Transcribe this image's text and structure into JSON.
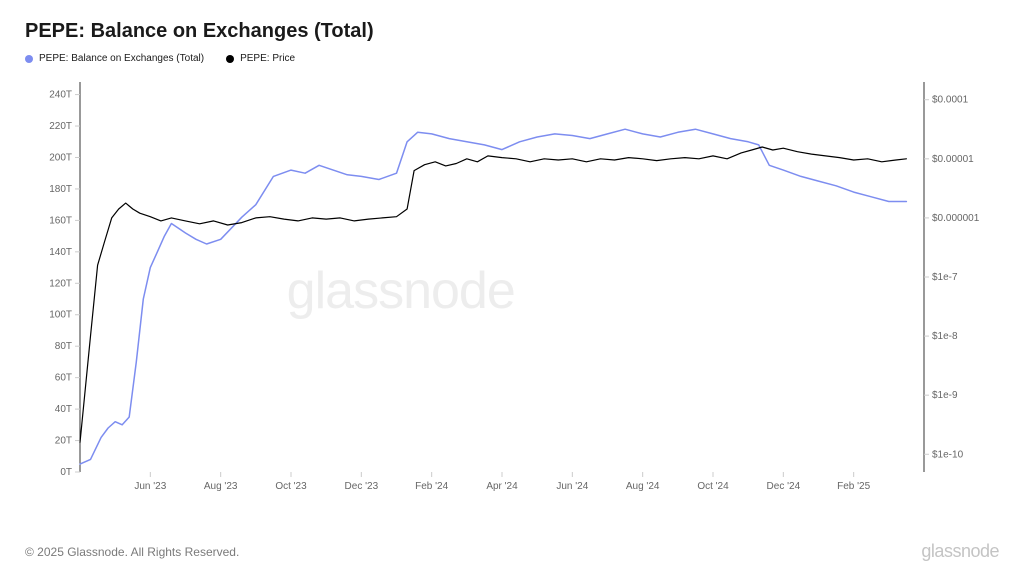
{
  "title": "PEPE: Balance on Exchanges (Total)",
  "legend": [
    {
      "label": "PEPE: Balance on Exchanges (Total)",
      "color": "#7d8df0"
    },
    {
      "label": "PEPE: Price",
      "color": "#000000"
    }
  ],
  "copyright": "© 2025 Glassnode. All Rights Reserved.",
  "brand": "glassnode",
  "watermark": "glassnode",
  "chart": {
    "type": "line-dual-axis",
    "background_color": "#ffffff",
    "grid_color": "#eeeeee",
    "axis_line_color": "#333333",
    "font_family": "sans-serif",
    "label_fontsize": 10,
    "title_fontsize": 20,
    "x": {
      "ticks": [
        "Jun '23",
        "Aug '23",
        "Oct '23",
        "Dec '23",
        "Feb '24",
        "Apr '24",
        "Jun '24",
        "Aug '24",
        "Oct '24",
        "Dec '24",
        "Feb '25"
      ],
      "range_months": 24
    },
    "y_left": {
      "label_suffix": "T",
      "ticks": [
        0,
        20,
        40,
        60,
        80,
        100,
        120,
        140,
        160,
        180,
        200,
        220,
        240
      ],
      "lim": [
        0,
        248
      ]
    },
    "y_right": {
      "scale": "log",
      "ticks": [
        "$0.0001",
        "$0.00001",
        "$0.000001",
        "$1e-7",
        "$1e-8",
        "$1e-9",
        "$1e-10"
      ],
      "tick_exponents": [
        -4,
        -5,
        -6,
        -7,
        -8,
        -9,
        -10
      ],
      "lim_exp": [
        -10.3,
        -3.7
      ]
    },
    "series_balance": {
      "color": "#7d8df0",
      "width": 1.5,
      "data": [
        [
          0.0,
          5
        ],
        [
          0.3,
          8
        ],
        [
          0.6,
          22
        ],
        [
          0.8,
          28
        ],
        [
          1.0,
          32
        ],
        [
          1.2,
          30
        ],
        [
          1.4,
          35
        ],
        [
          1.6,
          70
        ],
        [
          1.8,
          110
        ],
        [
          2.0,
          130
        ],
        [
          2.2,
          140
        ],
        [
          2.4,
          150
        ],
        [
          2.6,
          158
        ],
        [
          2.8,
          155
        ],
        [
          3.0,
          152
        ],
        [
          3.3,
          148
        ],
        [
          3.6,
          145
        ],
        [
          4.0,
          148
        ],
        [
          4.3,
          155
        ],
        [
          4.6,
          162
        ],
        [
          5.0,
          170
        ],
        [
          5.5,
          188
        ],
        [
          6.0,
          192
        ],
        [
          6.4,
          190
        ],
        [
          6.8,
          195
        ],
        [
          7.2,
          192
        ],
        [
          7.6,
          189
        ],
        [
          8.0,
          188
        ],
        [
          8.5,
          186
        ],
        [
          9.0,
          190
        ],
        [
          9.3,
          210
        ],
        [
          9.6,
          216
        ],
        [
          10.0,
          215
        ],
        [
          10.5,
          212
        ],
        [
          11.0,
          210
        ],
        [
          11.5,
          208
        ],
        [
          12.0,
          205
        ],
        [
          12.5,
          210
        ],
        [
          13.0,
          213
        ],
        [
          13.5,
          215
        ],
        [
          14.0,
          214
        ],
        [
          14.5,
          212
        ],
        [
          15.0,
          215
        ],
        [
          15.5,
          218
        ],
        [
          16.0,
          215
        ],
        [
          16.5,
          213
        ],
        [
          17.0,
          216
        ],
        [
          17.5,
          218
        ],
        [
          18.0,
          215
        ],
        [
          18.5,
          212
        ],
        [
          19.0,
          210
        ],
        [
          19.3,
          208
        ],
        [
          19.6,
          195
        ],
        [
          20.0,
          192
        ],
        [
          20.5,
          188
        ],
        [
          21.0,
          185
        ],
        [
          21.5,
          182
        ],
        [
          22.0,
          178
        ],
        [
          22.5,
          175
        ],
        [
          23.0,
          172
        ],
        [
          23.5,
          172
        ]
      ]
    },
    "series_price": {
      "color": "#000000",
      "width": 1.2,
      "data_log10": [
        [
          0.0,
          -9.8
        ],
        [
          0.3,
          -8.0
        ],
        [
          0.5,
          -6.8
        ],
        [
          0.7,
          -6.4
        ],
        [
          0.9,
          -6.0
        ],
        [
          1.1,
          -5.85
        ],
        [
          1.3,
          -5.75
        ],
        [
          1.5,
          -5.85
        ],
        [
          1.7,
          -5.92
        ],
        [
          2.0,
          -5.98
        ],
        [
          2.3,
          -6.05
        ],
        [
          2.6,
          -6.0
        ],
        [
          3.0,
          -6.05
        ],
        [
          3.4,
          -6.1
        ],
        [
          3.8,
          -6.05
        ],
        [
          4.2,
          -6.12
        ],
        [
          4.6,
          -6.08
        ],
        [
          5.0,
          -6.0
        ],
        [
          5.4,
          -5.98
        ],
        [
          5.8,
          -6.02
        ],
        [
          6.2,
          -6.05
        ],
        [
          6.6,
          -6.0
        ],
        [
          7.0,
          -6.02
        ],
        [
          7.4,
          -6.0
        ],
        [
          7.8,
          -6.05
        ],
        [
          8.2,
          -6.02
        ],
        [
          8.6,
          -6.0
        ],
        [
          9.0,
          -5.98
        ],
        [
          9.3,
          -5.85
        ],
        [
          9.5,
          -5.2
        ],
        [
          9.8,
          -5.1
        ],
        [
          10.1,
          -5.05
        ],
        [
          10.4,
          -5.12
        ],
        [
          10.7,
          -5.08
        ],
        [
          11.0,
          -5.0
        ],
        [
          11.3,
          -5.05
        ],
        [
          11.6,
          -4.95
        ],
        [
          12.0,
          -4.98
        ],
        [
          12.4,
          -5.0
        ],
        [
          12.8,
          -5.05
        ],
        [
          13.2,
          -5.0
        ],
        [
          13.6,
          -5.02
        ],
        [
          14.0,
          -5.0
        ],
        [
          14.4,
          -5.05
        ],
        [
          14.8,
          -5.0
        ],
        [
          15.2,
          -5.02
        ],
        [
          15.6,
          -4.98
        ],
        [
          16.0,
          -5.0
        ],
        [
          16.4,
          -5.03
        ],
        [
          16.8,
          -5.0
        ],
        [
          17.2,
          -4.98
        ],
        [
          17.6,
          -5.0
        ],
        [
          18.0,
          -4.95
        ],
        [
          18.4,
          -5.0
        ],
        [
          18.8,
          -4.9
        ],
        [
          19.1,
          -4.85
        ],
        [
          19.4,
          -4.8
        ],
        [
          19.7,
          -4.85
        ],
        [
          20.0,
          -4.82
        ],
        [
          20.4,
          -4.88
        ],
        [
          20.8,
          -4.92
        ],
        [
          21.2,
          -4.95
        ],
        [
          21.6,
          -4.98
        ],
        [
          22.0,
          -5.02
        ],
        [
          22.4,
          -5.0
        ],
        [
          22.8,
          -5.05
        ],
        [
          23.2,
          -5.02
        ],
        [
          23.5,
          -5.0
        ]
      ]
    }
  }
}
